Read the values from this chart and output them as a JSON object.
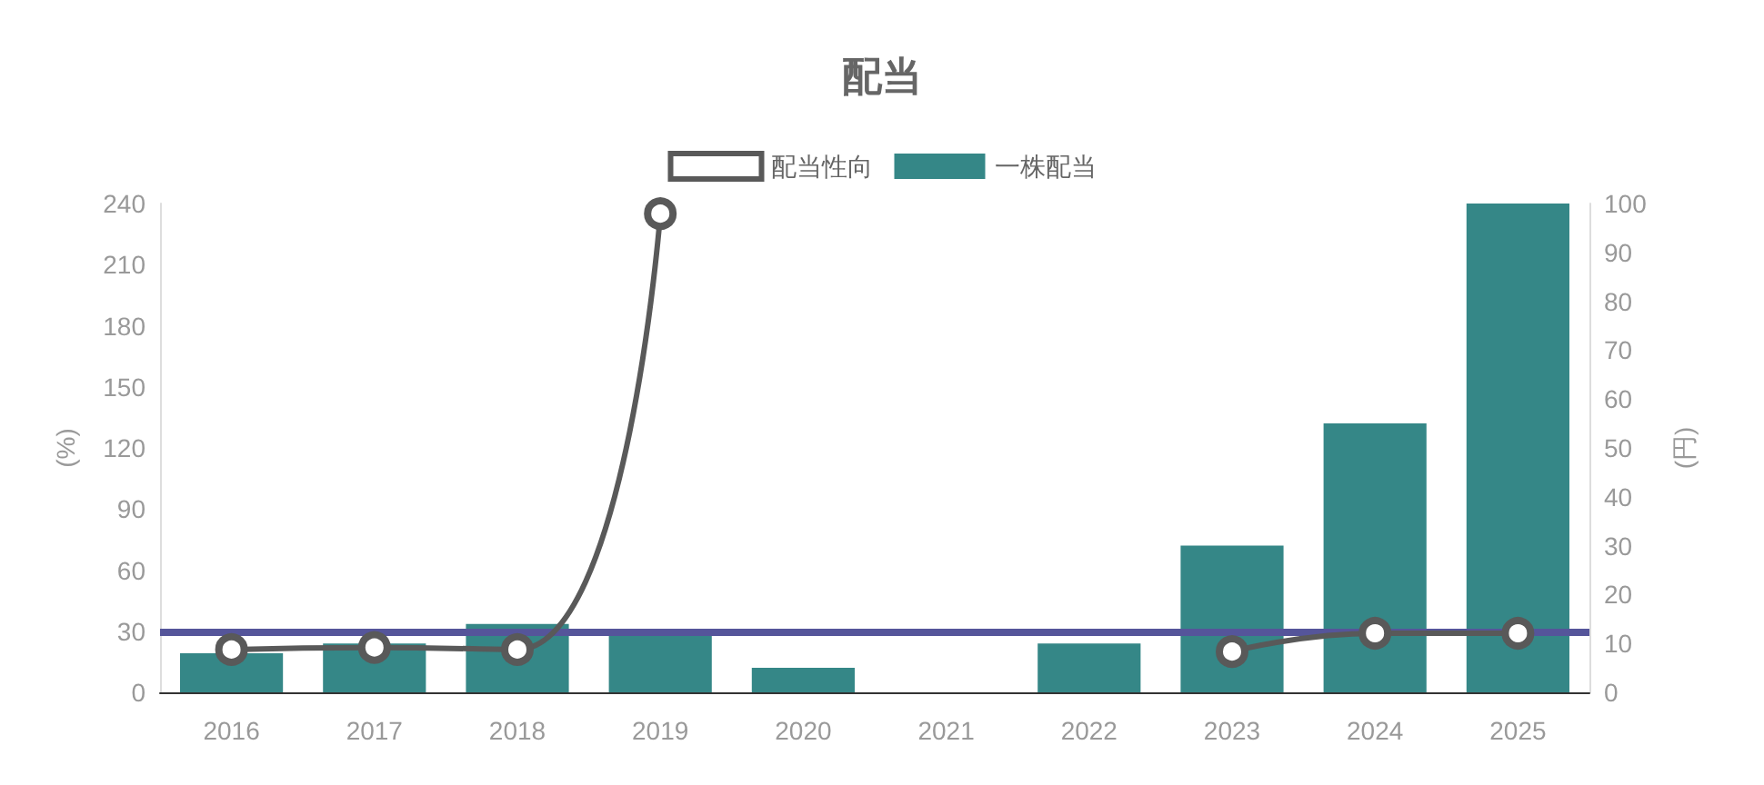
{
  "chart_data": {
    "type": "bar",
    "title": "配当",
    "categories": [
      "2016",
      "2017",
      "2018",
      "2019",
      "2020",
      "2021",
      "2022",
      "2023",
      "2024",
      "2025"
    ],
    "series": [
      {
        "name": "配当性向",
        "type": "line",
        "color": "#595959",
        "axis": "y",
        "marker": "circle",
        "values": [
          21,
          22,
          21,
          235,
          null,
          null,
          null,
          20,
          29,
          29
        ]
      },
      {
        "name": "一株配当",
        "type": "bar",
        "color": "#358787",
        "axis": "y2",
        "values": [
          8,
          10,
          14,
          12,
          5,
          null,
          10,
          30,
          55,
          100
        ]
      }
    ],
    "ylabel": "(%)",
    "y2label": "(円)",
    "ylim": [
      0,
      240
    ],
    "yticks": [
      0,
      30,
      60,
      90,
      120,
      150,
      180,
      210,
      240
    ],
    "y2lim": [
      0,
      100
    ],
    "y2ticks": [
      0,
      10,
      20,
      30,
      40,
      50,
      60,
      70,
      80,
      90,
      100
    ],
    "ref_lines": [
      {
        "axis": "y",
        "value": 30,
        "color": "#55559a"
      }
    ],
    "grid": false,
    "legend": "top"
  }
}
